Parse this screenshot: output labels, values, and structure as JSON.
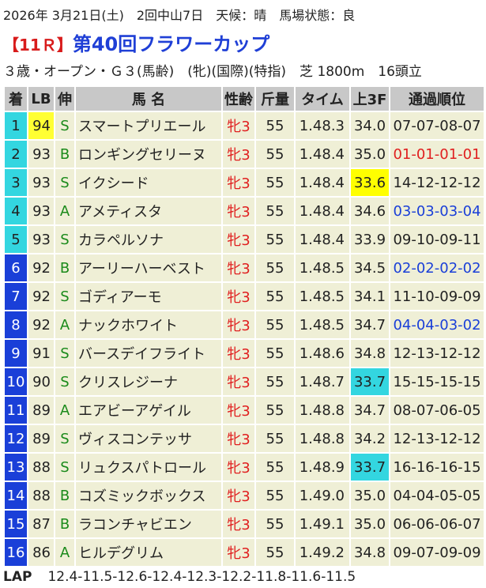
{
  "header": {
    "info": "2026年 3月21日(土)　2回中山7日　天候：晴　馬場状態：良",
    "race_no": "【11Ｒ】",
    "race_name": "第40回フラワーカップ",
    "conditions": "３歳・オープン・Ｇ３(馬齢)　(牝)(国際)(特指)　芝 1800m　16頭立"
  },
  "table": {
    "columns": [
      "着",
      "LB",
      "伸",
      "馬 名",
      "性齢",
      "斤量",
      "タイム",
      "上3F",
      "通過順位"
    ],
    "rows": [
      [
        "1",
        "94",
        "S",
        "スマートプリエール",
        "牝3",
        "55",
        "1.48.3",
        "34.0",
        "07-07-08-07"
      ],
      [
        "2",
        "93",
        "B",
        "ロンギングセリーヌ",
        "牝3",
        "55",
        "1.48.4",
        "35.0",
        "01-01-01-01"
      ],
      [
        "3",
        "93",
        "S",
        "イクシード",
        "牝3",
        "55",
        "1.48.4",
        "33.6",
        "14-12-12-12"
      ],
      [
        "4",
        "93",
        "A",
        "アメティスタ",
        "牝3",
        "55",
        "1.48.4",
        "34.6",
        "03-03-03-04"
      ],
      [
        "5",
        "93",
        "S",
        "カラペルソナ",
        "牝3",
        "55",
        "1.48.4",
        "33.9",
        "09-10-09-11"
      ],
      [
        "6",
        "92",
        "B",
        "アーリーハーベスト",
        "牝3",
        "55",
        "1.48.5",
        "34.5",
        "02-02-02-02"
      ],
      [
        "7",
        "92",
        "S",
        "ゴディアーモ",
        "牝3",
        "55",
        "1.48.5",
        "34.1",
        "11-10-09-09"
      ],
      [
        "8",
        "92",
        "A",
        "ナックホワイト",
        "牝3",
        "55",
        "1.48.5",
        "34.7",
        "04-04-03-02"
      ],
      [
        "9",
        "91",
        "S",
        "バースデイフライト",
        "牝3",
        "55",
        "1.48.6",
        "34.8",
        "12-13-12-12"
      ],
      [
        "10",
        "90",
        "S",
        "クリスレジーナ",
        "牝3",
        "55",
        "1.48.7",
        "33.7",
        "15-15-15-15"
      ],
      [
        "11",
        "89",
        "A",
        "エアビーアゲイル",
        "牝3",
        "55",
        "1.48.8",
        "34.7",
        "08-07-06-05"
      ],
      [
        "12",
        "89",
        "S",
        "ヴィスコンテッサ",
        "牝3",
        "55",
        "1.48.8",
        "34.2",
        "12-13-12-12"
      ],
      [
        "13",
        "88",
        "S",
        "リュクスパトロール",
        "牝3",
        "55",
        "1.48.9",
        "33.7",
        "16-16-16-15"
      ],
      [
        "14",
        "88",
        "B",
        "コズミックボックス",
        "牝3",
        "55",
        "1.49.0",
        "35.0",
        "04-04-05-05"
      ],
      [
        "15",
        "87",
        "B",
        "ラコンチャビエン",
        "牝3",
        "55",
        "1.49.1",
        "35.0",
        "06-06-06-07"
      ],
      [
        "16",
        "86",
        "A",
        "ヒルデグリム",
        "牝3",
        "55",
        "1.49.2",
        "34.8",
        "09-07-09-09"
      ]
    ]
  },
  "lap": {
    "label": "LAP",
    "value": "12.4-11.5-12.6-12.4-12.3-12.2-11.8-11.6-11.5"
  }
}
